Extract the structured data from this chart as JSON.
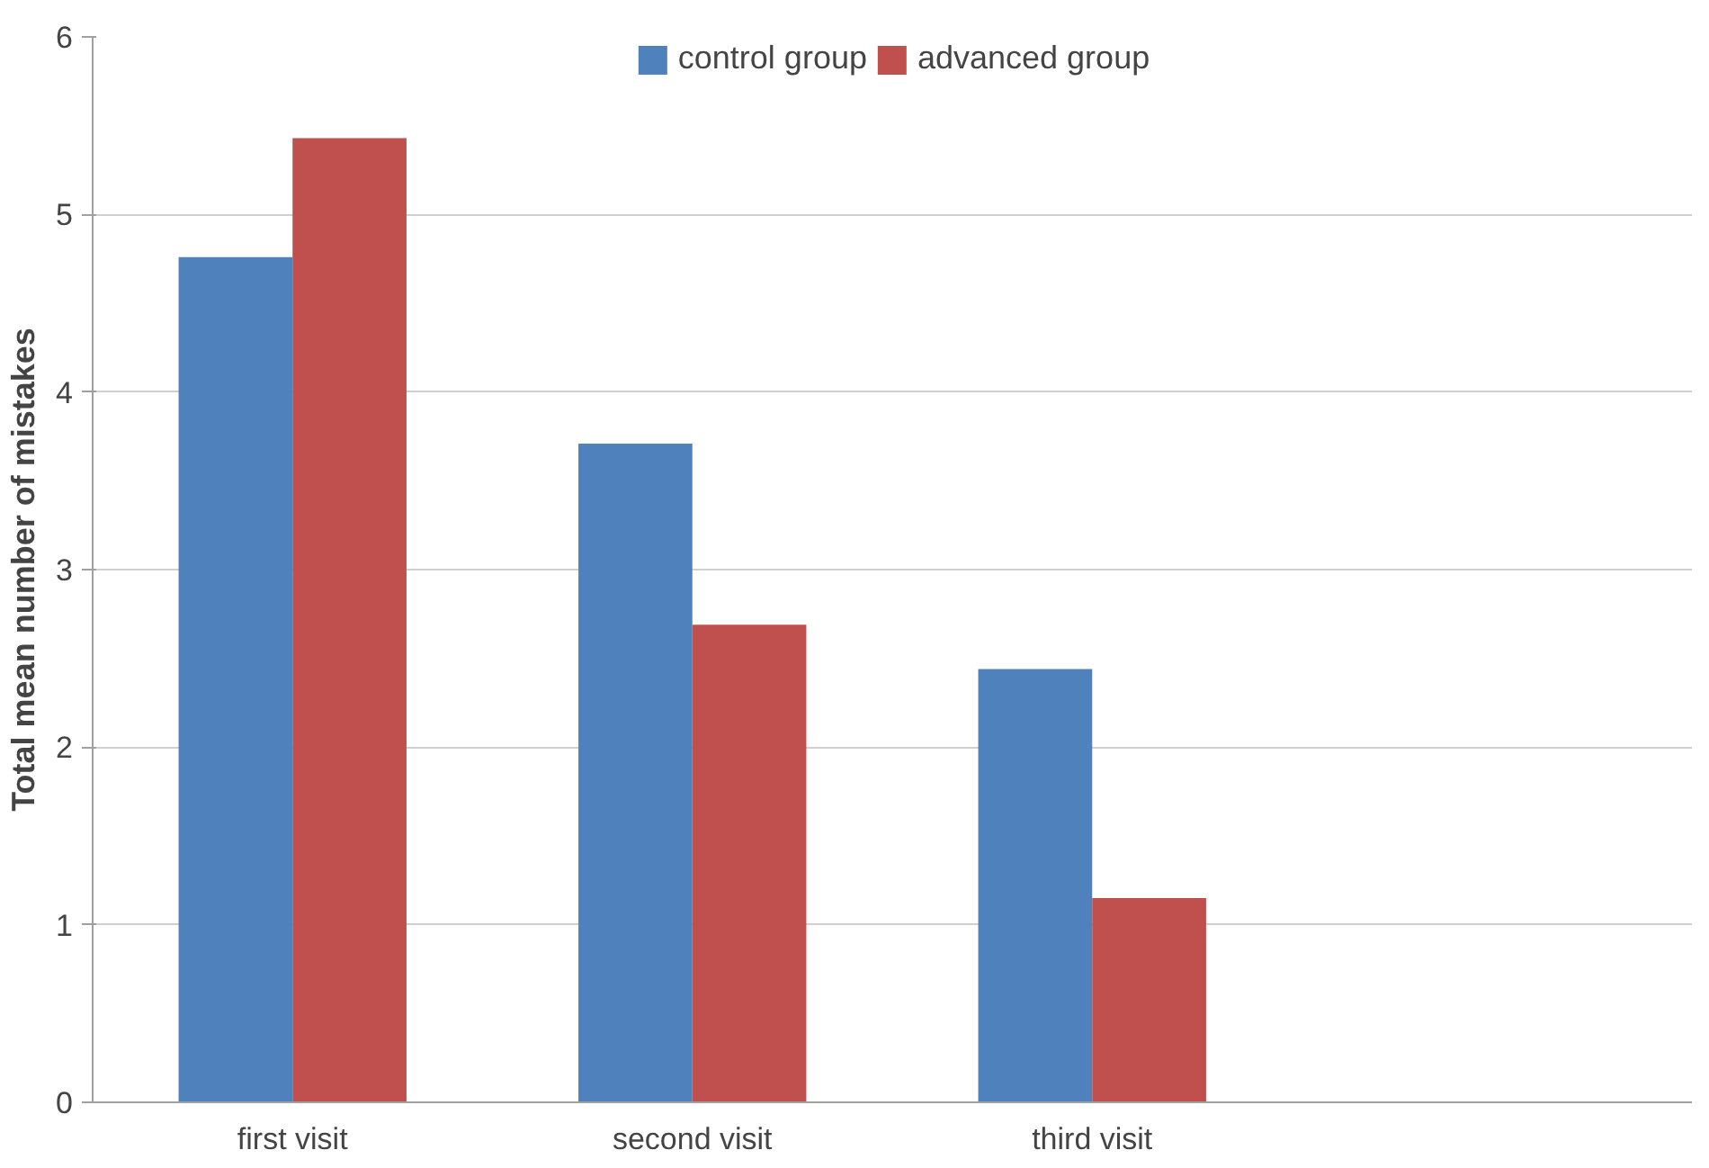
{
  "chart_data": {
    "type": "bar",
    "ylabel": "Total mean number of mistakes",
    "categories": [
      "first visit",
      "second visit",
      "third visit",
      null
    ],
    "series": [
      {
        "name": "control group",
        "color": "#4f81bd",
        "values": [
          4.76,
          3.71,
          2.44,
          null
        ]
      },
      {
        "name": "advanced group",
        "color": "#c0504d",
        "values": [
          5.43,
          2.69,
          1.15,
          null
        ]
      }
    ],
    "ylim": [
      0,
      6
    ],
    "yticks": [
      0,
      1,
      2,
      3,
      4,
      5,
      6
    ],
    "grid": "y",
    "legend": "top"
  }
}
